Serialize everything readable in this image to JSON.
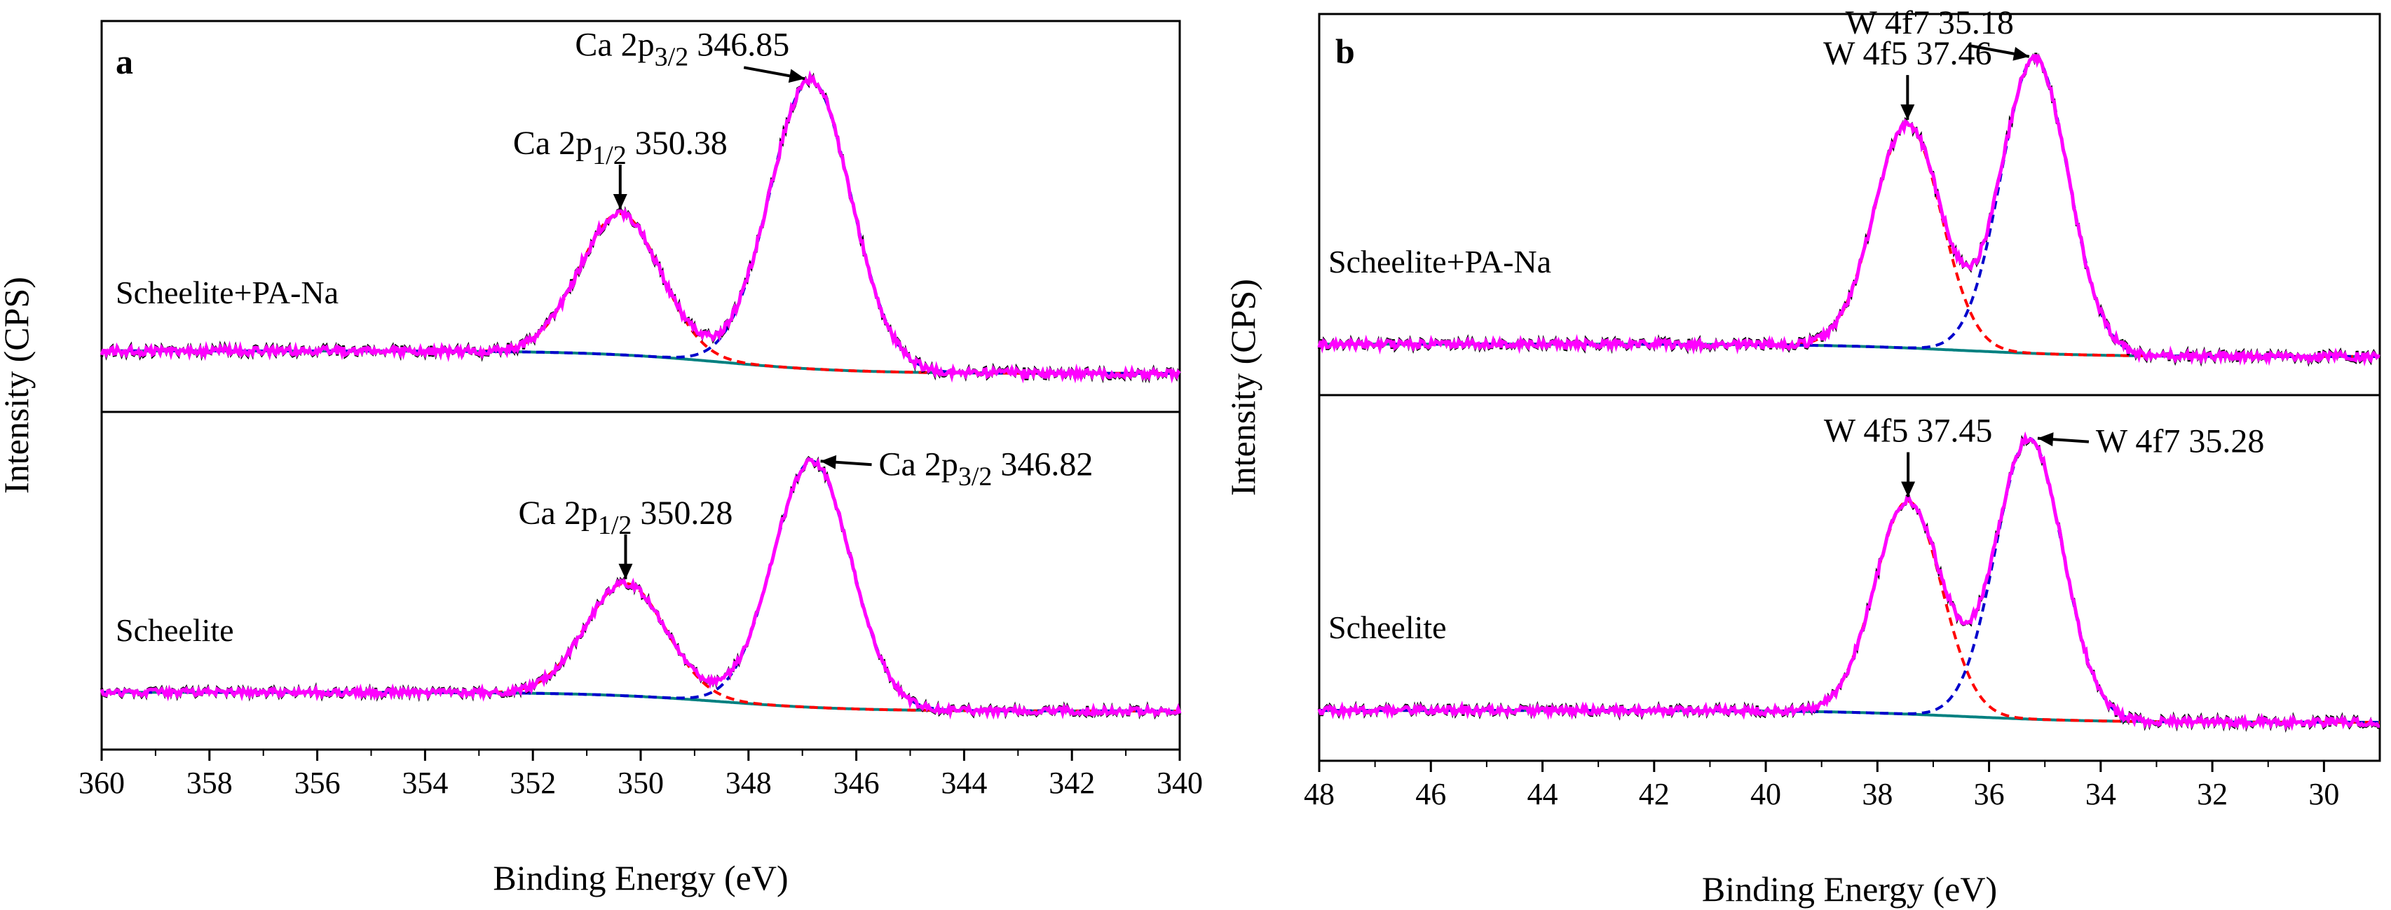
{
  "chart_data": [
    {
      "id": "a",
      "type": "line",
      "panel_label": "a",
      "xlabel": "Binding Energy (eV)",
      "ylabel": "Intensity (CPS)",
      "xlim": [
        360,
        340
      ],
      "x_reversed": true,
      "x_ticks": [
        360,
        358,
        356,
        354,
        352,
        350,
        348,
        346,
        344,
        342,
        340
      ],
      "x_tick_labels": [
        "360",
        "358",
        "356",
        "354",
        "352",
        "350",
        "348",
        "346",
        "344",
        "342",
        "340"
      ],
      "grid": false,
      "legend": "none",
      "series_colors": {
        "measured": "#000000",
        "envelope": "#ff00ff",
        "peak_high": "#ff0000",
        "peak_low": "#0000cc",
        "background": "#008080"
      },
      "spectra": [
        {
          "sample": "Scheelite+PA-Na",
          "ylim": [
            0,
            1
          ],
          "baseline_start": 0.07,
          "baseline_end": 0.0,
          "background_drop_center": 348.5,
          "peaks": [
            {
              "center": 350.38,
              "height": 0.44,
              "sigma": 0.75,
              "label_text": "Ca 2p",
              "label_sub": "1/2",
              "label_value": "350.38"
            },
            {
              "center": 346.85,
              "height": 0.9,
              "sigma": 0.75,
              "label_text": "Ca 2p",
              "label_sub": "3/2",
              "label_value": "346.85"
            }
          ],
          "label_side": "left"
        },
        {
          "sample": "Scheelite",
          "ylim": [
            0,
            1
          ],
          "baseline_start": 0.07,
          "baseline_end": 0.0,
          "background_drop_center": 348.5,
          "peaks": [
            {
              "center": 350.28,
              "height": 0.42,
              "sigma": 0.75,
              "label_text": "Ca 2p",
              "label_sub": "1/2",
              "label_value": "350.28"
            },
            {
              "center": 346.82,
              "height": 0.92,
              "sigma": 0.72,
              "label_text": "Ca 2p",
              "label_sub": "3/2",
              "label_value": "346.82"
            }
          ],
          "label_side": "right"
        }
      ]
    },
    {
      "id": "b",
      "type": "line",
      "panel_label": "b",
      "xlabel": "Binding Energy (eV)",
      "ylabel": "Intensity (CPS)",
      "xlim": [
        48,
        29
      ],
      "x_reversed": true,
      "x_ticks": [
        48,
        46,
        44,
        42,
        40,
        38,
        36,
        34,
        32,
        30
      ],
      "x_tick_labels": [
        "48",
        "46",
        "44",
        "42",
        "40",
        "38",
        "36",
        "34",
        "32",
        "30"
      ],
      "grid": false,
      "legend": "none",
      "series_colors": {
        "measured": "#000000",
        "envelope": "#ff00ff",
        "peak_high": "#ff0000",
        "peak_low": "#0000cc",
        "background": "#008080"
      },
      "spectra": [
        {
          "sample": "Scheelite+PA-Na",
          "ylim": [
            0,
            1
          ],
          "baseline_start": 0.04,
          "baseline_end": 0.0,
          "background_drop_center": 36.5,
          "peaks": [
            {
              "center": 37.46,
              "height": 0.72,
              "sigma": 0.6,
              "label_text": "W 4f5",
              "label_sub": "",
              "label_value": "37.46"
            },
            {
              "center": 35.18,
              "height": 0.95,
              "sigma": 0.6,
              "label_text": "W 4f7",
              "label_sub": "",
              "label_value": "35.18"
            }
          ],
          "label_side": "left"
        },
        {
          "sample": "Scheelite",
          "ylim": [
            0,
            1
          ],
          "baseline_start": 0.04,
          "baseline_end": 0.0,
          "background_drop_center": 36.5,
          "peaks": [
            {
              "center": 37.45,
              "height": 0.72,
              "sigma": 0.6,
              "label_text": "W 4f5",
              "label_sub": "",
              "label_value": "37.45"
            },
            {
              "center": 35.28,
              "height": 0.95,
              "sigma": 0.6,
              "label_text": "W 4f7",
              "label_sub": "",
              "label_value": "35.28"
            }
          ],
          "label_side": "right"
        }
      ]
    }
  ]
}
